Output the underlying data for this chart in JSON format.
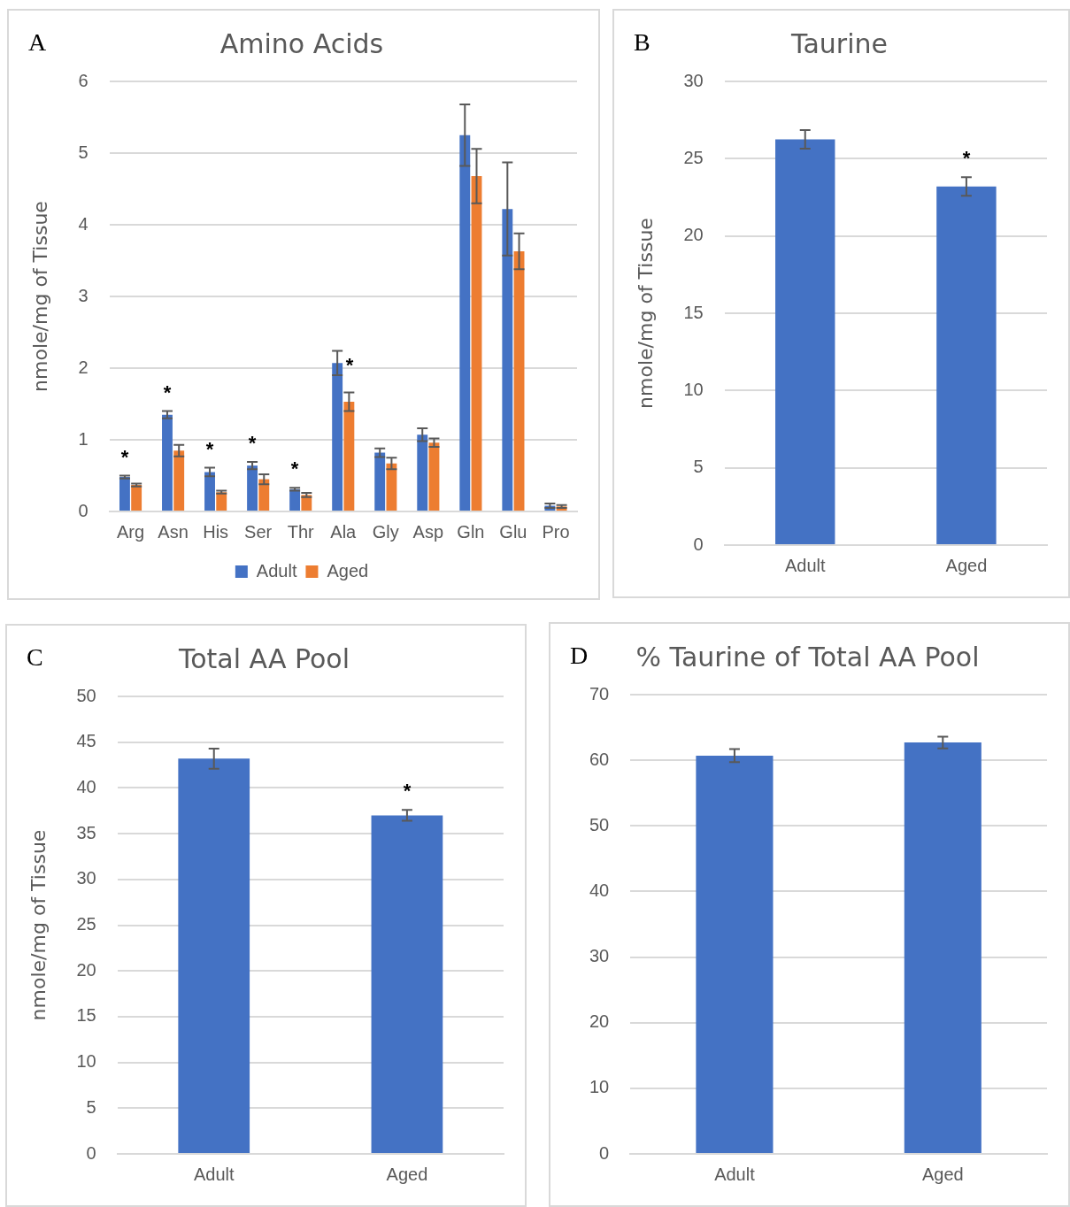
{
  "chart_data": [
    {
      "type": "bar",
      "title": "Amino Acids",
      "ylabel": "nmole/mg of Tissue",
      "categories": [
        "Arg",
        "Asn",
        "His",
        "Ser",
        "Thr",
        "Ala",
        "Gly",
        "Asp",
        "Gln",
        "Glu",
        "Pro"
      ],
      "series": [
        {
          "name": "Adult",
          "color": "#4472c4",
          "values": [
            0.48,
            1.35,
            0.55,
            0.64,
            0.31,
            2.07,
            0.82,
            1.07,
            5.25,
            4.22,
            0.08
          ],
          "errors": [
            0.02,
            0.05,
            0.06,
            0.05,
            0.02,
            0.17,
            0.06,
            0.09,
            0.43,
            0.65,
            0.03
          ]
        },
        {
          "name": "Aged",
          "color": "#ed7d31",
          "values": [
            0.37,
            0.85,
            0.27,
            0.45,
            0.23,
            1.53,
            0.67,
            0.96,
            4.68,
            3.63,
            0.07
          ],
          "errors": [
            0.02,
            0.08,
            0.02,
            0.07,
            0.03,
            0.13,
            0.08,
            0.06,
            0.38,
            0.25,
            0.02
          ]
        }
      ],
      "ylim": [
        0,
        6
      ],
      "yticks": [
        0,
        1,
        2,
        3,
        4,
        5,
        6
      ],
      "grid": "y",
      "legend": "bottom",
      "annotations": [
        "A",
        {
          "text": "*",
          "x": "Arg",
          "y": 0.5
        },
        {
          "text": "*",
          "x": "Asn",
          "y": 1.4
        },
        {
          "text": "*",
          "x": "His",
          "y": 0.61
        },
        {
          "text": "*",
          "x": "Ser",
          "y": 0.69
        },
        {
          "text": "*",
          "x": "Thr",
          "y": 0.33
        },
        {
          "text": "*",
          "x": "Ala",
          "y": 2.07
        }
      ]
    },
    {
      "type": "bar",
      "title": "Taurine",
      "ylabel": "nmole/mg of Tissue",
      "categories": [
        "Adult",
        "Aged"
      ],
      "series": [
        {
          "color": "#4472c4",
          "values": [
            26.25,
            23.2
          ],
          "errors": [
            0.6,
            0.6
          ]
        }
      ],
      "ylim": [
        0,
        30
      ],
      "yticks": [
        0,
        5,
        10,
        15,
        20,
        25,
        30
      ],
      "grid": "y",
      "annotations": [
        "B",
        {
          "text": "*",
          "x": "Aged",
          "y": 23.8
        }
      ]
    },
    {
      "type": "bar",
      "title": "Total AA Pool",
      "ylabel": "nmole/mg of Tissue",
      "categories": [
        "Adult",
        "Aged"
      ],
      "series": [
        {
          "color": "#4472c4",
          "values": [
            43.2,
            37.0
          ],
          "errors": [
            1.1,
            0.6
          ]
        }
      ],
      "ylim": [
        0,
        50
      ],
      "yticks": [
        0,
        5,
        10,
        15,
        20,
        25,
        30,
        35,
        40,
        45,
        50
      ],
      "grid": "y",
      "annotations": [
        "C",
        {
          "text": "*",
          "x": "Aged",
          "y": 37.6
        }
      ]
    },
    {
      "type": "bar",
      "title": "% Taurine of Total AA Pool",
      "categories": [
        "Adult",
        "Aged"
      ],
      "series": [
        {
          "color": "#4472c4",
          "values": [
            60.7,
            62.7
          ],
          "errors": [
            1.0,
            0.9
          ]
        }
      ],
      "ylim": [
        0,
        70
      ],
      "yticks": [
        0,
        10,
        20,
        30,
        40,
        50,
        60,
        70
      ],
      "grid": "y",
      "annotations": [
        "D"
      ]
    }
  ]
}
